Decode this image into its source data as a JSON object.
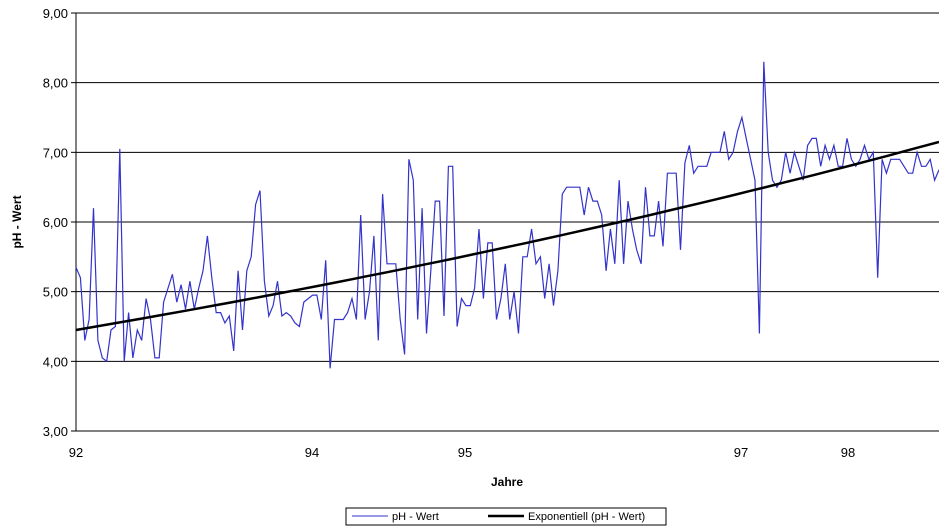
{
  "chart_data": {
    "type": "line",
    "xlabel": "Jahre",
    "ylabel": "pH - Wert",
    "ylim": [
      3,
      9
    ],
    "y_ticks": [
      "3,00",
      "4,00",
      "5,00",
      "6,00",
      "7,00",
      "8,00",
      "9,00"
    ],
    "x_tick_labels": [
      "92",
      "94",
      "95",
      "97",
      "98"
    ],
    "grid": "horizontal",
    "legend_position": "bottom",
    "series": [
      {
        "name": "pH - Wert",
        "color": "#3333cc",
        "values": [
          5.35,
          5.2,
          4.3,
          4.6,
          6.2,
          4.3,
          4.05,
          4.0,
          4.45,
          4.5,
          7.05,
          4.0,
          4.7,
          4.05,
          4.45,
          4.3,
          4.9,
          4.6,
          4.05,
          4.05,
          4.85,
          5.05,
          5.25,
          4.85,
          5.1,
          4.75,
          5.15,
          4.75,
          5.05,
          5.3,
          5.8,
          5.2,
          4.7,
          4.7,
          4.55,
          4.65,
          4.15,
          5.3,
          4.45,
          5.3,
          5.5,
          6.25,
          6.45,
          5.15,
          4.65,
          4.8,
          5.15,
          4.65,
          4.7,
          4.65,
          4.55,
          4.5,
          4.85,
          4.9,
          4.95,
          4.95,
          4.6,
          5.45,
          3.9,
          4.6,
          4.6,
          4.6,
          4.7,
          4.9,
          4.6,
          6.1,
          4.6,
          5.0,
          5.8,
          4.3,
          6.4,
          5.4,
          5.4,
          5.4,
          4.6,
          4.1,
          6.9,
          6.6,
          4.6,
          6.2,
          4.4,
          5.3,
          6.3,
          6.3,
          4.65,
          6.8,
          6.8,
          4.5,
          4.9,
          4.8,
          4.8,
          5.05,
          5.9,
          4.9,
          5.7,
          5.7,
          4.6,
          4.9,
          5.4,
          4.6,
          5.0,
          4.4,
          5.5,
          5.5,
          5.9,
          5.4,
          5.5,
          4.9,
          5.4,
          4.8,
          5.3,
          6.4,
          6.5,
          6.5,
          6.5,
          6.5,
          6.1,
          6.5,
          6.3,
          6.3,
          6.1,
          5.3,
          5.9,
          5.4,
          6.6,
          5.4,
          6.3,
          5.9,
          5.6,
          5.4,
          6.5,
          5.8,
          5.8,
          6.3,
          5.65,
          6.7,
          6.7,
          6.7,
          5.6,
          6.85,
          7.1,
          6.7,
          6.8,
          6.8,
          6.8,
          7.0,
          7.0,
          7.0,
          7.3,
          6.9,
          7.0,
          7.3,
          7.5,
          7.2,
          6.9,
          6.6,
          4.4,
          8.3,
          7.0,
          6.6,
          6.5,
          6.6,
          7.0,
          6.7,
          7.0,
          6.8,
          6.6,
          7.1,
          7.2,
          7.2,
          6.8,
          7.1,
          6.9,
          7.1,
          6.8,
          6.8,
          7.2,
          6.9,
          6.8,
          6.9,
          7.1,
          6.9,
          7.0,
          5.2,
          6.9,
          6.7,
          6.9,
          6.9,
          6.9,
          6.8,
          6.7,
          6.7,
          7.0,
          6.8,
          6.8,
          6.9,
          6.6,
          6.75
        ]
      },
      {
        "name": "Exponentiell (pH - Wert)",
        "color": "#000000",
        "trend": {
          "start": 4.45,
          "end": 7.15
        }
      }
    ]
  }
}
